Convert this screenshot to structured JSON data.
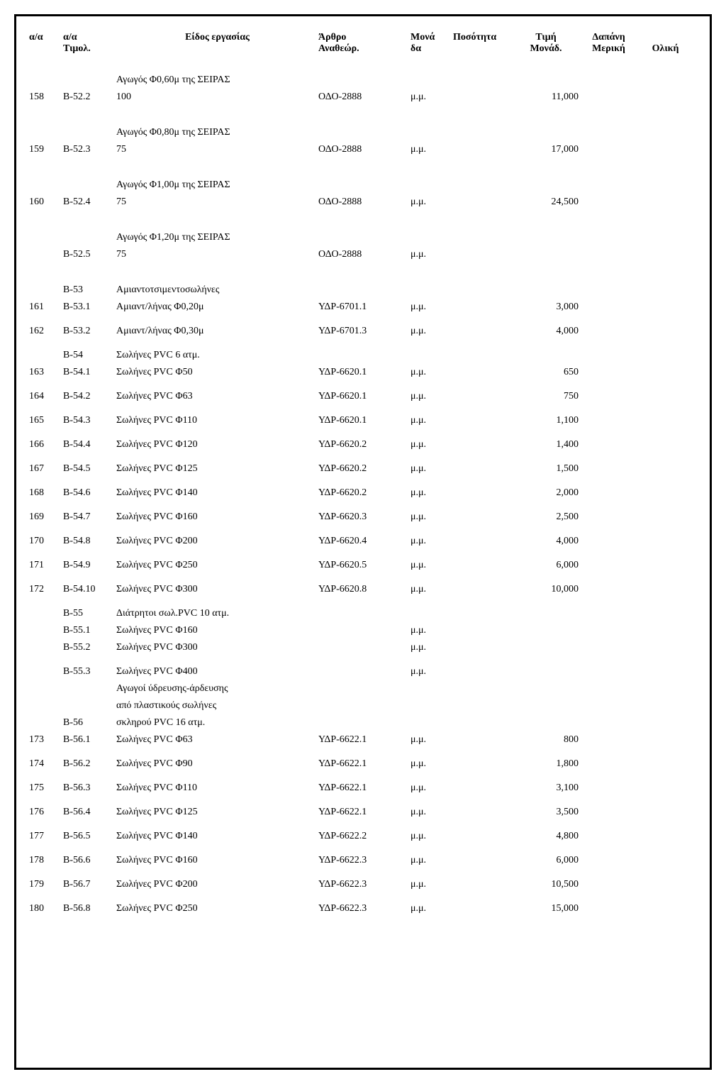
{
  "header": {
    "aa": "α/α",
    "aa_tim": "α/α",
    "tim": "Τιμολ.",
    "desc": "Είδος εργασίας",
    "art": "Άρθρο",
    "art2": "Αναθεώρ.",
    "unit": "Μονά",
    "unit2": "δα",
    "qty": "Ποσότητα",
    "price": "Τιμή",
    "price2": "Μονάδ.",
    "partial": "Δαπάνη",
    "partial2": "Μερική",
    "total": "Ολική"
  },
  "rows": [
    {
      "aa": "158",
      "tim": "B-52.2",
      "desc_pre": "Αγωγός Φ0,60μ της  ΣΕΙΡΑΣ",
      "desc": "100",
      "art": "ΟΔΟ-2888",
      "unit": "μ.μ.",
      "price": "11,000"
    },
    {
      "aa": "159",
      "tim": "B-52.3",
      "desc_pre": "Αγωγός Φ0,80μ της  ΣΕΙΡΑΣ",
      "desc": "75",
      "art": "ΟΔΟ-2888",
      "unit": "μ.μ.",
      "price": "17,000"
    },
    {
      "aa": "160",
      "tim": "B-52.4",
      "desc_pre": "Αγωγός Φ1,00μ της  ΣΕΙΡΑΣ",
      "desc": "75",
      "art": "ΟΔΟ-2888",
      "unit": "μ.μ.",
      "price": "24,500"
    },
    {
      "aa": "",
      "tim": "B-52.5",
      "desc_pre": "Αγωγός Φ1,20μ της  ΣΕΙΡΑΣ",
      "desc": "75",
      "art": "ΟΔΟ-2888",
      "unit": "μ.μ.",
      "price": ""
    },
    {
      "aa": "",
      "tim": "B-53",
      "desc": "Αμιαντοτσιμεντοσωλήνες",
      "art": "",
      "unit": "",
      "price": ""
    },
    {
      "aa": "161",
      "tim": "B-53.1",
      "desc": "Αμιαντ/λήνας Φ0,20μ",
      "art": "ΥΔΡ-6701.1",
      "unit": "μ.μ.",
      "price": "3,000"
    },
    {
      "aa": "162",
      "tim": "B-53.2",
      "desc": "Αμιαντ/λήνας Φ0,30μ",
      "art": "ΥΔΡ-6701.3",
      "unit": "μ.μ.",
      "price": "4,000"
    },
    {
      "aa": "",
      "tim": "B-54",
      "desc": "Σωλήνες PVC 6 ατμ.",
      "art": "",
      "unit": "",
      "price": ""
    },
    {
      "aa": "163",
      "tim": "B-54.1",
      "desc": "Σωλήνες PVC Φ50",
      "art": "ΥΔΡ-6620.1",
      "unit": "μ.μ.",
      "price": "650"
    },
    {
      "aa": "164",
      "tim": "B-54.2",
      "desc": "Σωλήνες PVC Φ63",
      "art": "ΥΔΡ-6620.1",
      "unit": "μ.μ.",
      "price": "750"
    },
    {
      "aa": "165",
      "tim": "B-54.3",
      "desc": "Σωλήνες PVC Φ110",
      "art": "ΥΔΡ-6620.1",
      "unit": "μ.μ.",
      "price": "1,100"
    },
    {
      "aa": "166",
      "tim": "B-54.4",
      "desc": "Σωλήνες PVC Φ120",
      "art": "ΥΔΡ-6620.2",
      "unit": "μ.μ.",
      "price": "1,400"
    },
    {
      "aa": "167",
      "tim": "B-54.5",
      "desc": "Σωλήνες PVC Φ125",
      "art": "ΥΔΡ-6620.2",
      "unit": "μ.μ.",
      "price": "1,500"
    },
    {
      "aa": "168",
      "tim": "B-54.6",
      "desc": "Σωλήνες PVC Φ140",
      "art": "ΥΔΡ-6620.2",
      "unit": "μ.μ.",
      "price": "2,000"
    },
    {
      "aa": "169",
      "tim": "B-54.7",
      "desc": "Σωλήνες PVC Φ160",
      "art": "ΥΔΡ-6620.3",
      "unit": "μ.μ.",
      "price": "2,500"
    },
    {
      "aa": "170",
      "tim": "B-54.8",
      "desc": "Σωλήνες PVC Φ200",
      "art": "ΥΔΡ-6620.4",
      "unit": "μ.μ.",
      "price": "4,000"
    },
    {
      "aa": "171",
      "tim": "B-54.9",
      "desc": "Σωλήνες PVC Φ250",
      "art": "ΥΔΡ-6620.5",
      "unit": "μ.μ.",
      "price": "6,000"
    },
    {
      "aa": "172",
      "tim": "B-54.10",
      "desc": "Σωλήνες PVC Φ300",
      "art": "ΥΔΡ-6620.8",
      "unit": "μ.μ.",
      "price": "10,000"
    },
    {
      "aa": "",
      "tim": "B-55",
      "desc": "Διάτρητοι σωλ.PVC 10 ατμ.",
      "art": "",
      "unit": "",
      "price": ""
    },
    {
      "aa": "",
      "tim": "B-55.1",
      "desc": "Σωλήνες PVC Φ160",
      "art": "",
      "unit": "μ.μ.",
      "price": ""
    },
    {
      "aa": "",
      "tim": "B-55.2",
      "desc": "Σωλήνες PVC Φ300",
      "art": "",
      "unit": "μ.μ.",
      "price": ""
    },
    {
      "aa": "",
      "tim": "B-55.3",
      "desc": "Σωλήνες PVC Φ400",
      "art": "",
      "unit": "μ.μ.",
      "price": ""
    },
    {
      "aa": "",
      "tim": "",
      "desc": "Αγωγοί ύδρευσης-άρδευσης",
      "art": "",
      "unit": "",
      "price": ""
    },
    {
      "aa": "",
      "tim": "",
      "desc": "από πλαστικούς σωλήνες",
      "art": "",
      "unit": "",
      "price": ""
    },
    {
      "aa": "",
      "tim": "B-56",
      "desc": "σκληρού PVC 16 ατμ.",
      "art": "",
      "unit": "",
      "price": ""
    },
    {
      "aa": "173",
      "tim": "B-56.1",
      "desc": "Σωλήνες PVC Φ63",
      "art": "ΥΔΡ-6622.1",
      "unit": "μ.μ.",
      "price": "800"
    },
    {
      "aa": "174",
      "tim": "B-56.2",
      "desc": "Σωλήνες PVC Φ90",
      "art": "ΥΔΡ-6622.1",
      "unit": "μ.μ.",
      "price": "1,800"
    },
    {
      "aa": "175",
      "tim": "B-56.3",
      "desc": "Σωλήνες PVC Φ110",
      "art": "ΥΔΡ-6622.1",
      "unit": "μ.μ.",
      "price": "3,100"
    },
    {
      "aa": "176",
      "tim": "B-56.4",
      "desc": "Σωλήνες PVC Φ125",
      "art": "ΥΔΡ-6622.1",
      "unit": "μ.μ.",
      "price": "3,500"
    },
    {
      "aa": "177",
      "tim": "B-56.5",
      "desc": "Σωλήνες PVC Φ140",
      "art": "ΥΔΡ-6622.2",
      "unit": "μ.μ.",
      "price": "4,800"
    },
    {
      "aa": "178",
      "tim": "B-56.6",
      "desc": "Σωλήνες PVC Φ160",
      "art": "ΥΔΡ-6622.3",
      "unit": "μ.μ.",
      "price": "6,000"
    },
    {
      "aa": "179",
      "tim": "B-56.7",
      "desc": "Σωλήνες PVC Φ200",
      "art": "ΥΔΡ-6622.3",
      "unit": "μ.μ.",
      "price": "10,500"
    },
    {
      "aa": "180",
      "tim": "B-56.8",
      "desc": "Σωλήνες PVC Φ250",
      "art": "ΥΔΡ-6622.3",
      "unit": "μ.μ.",
      "price": "15,000"
    }
  ]
}
